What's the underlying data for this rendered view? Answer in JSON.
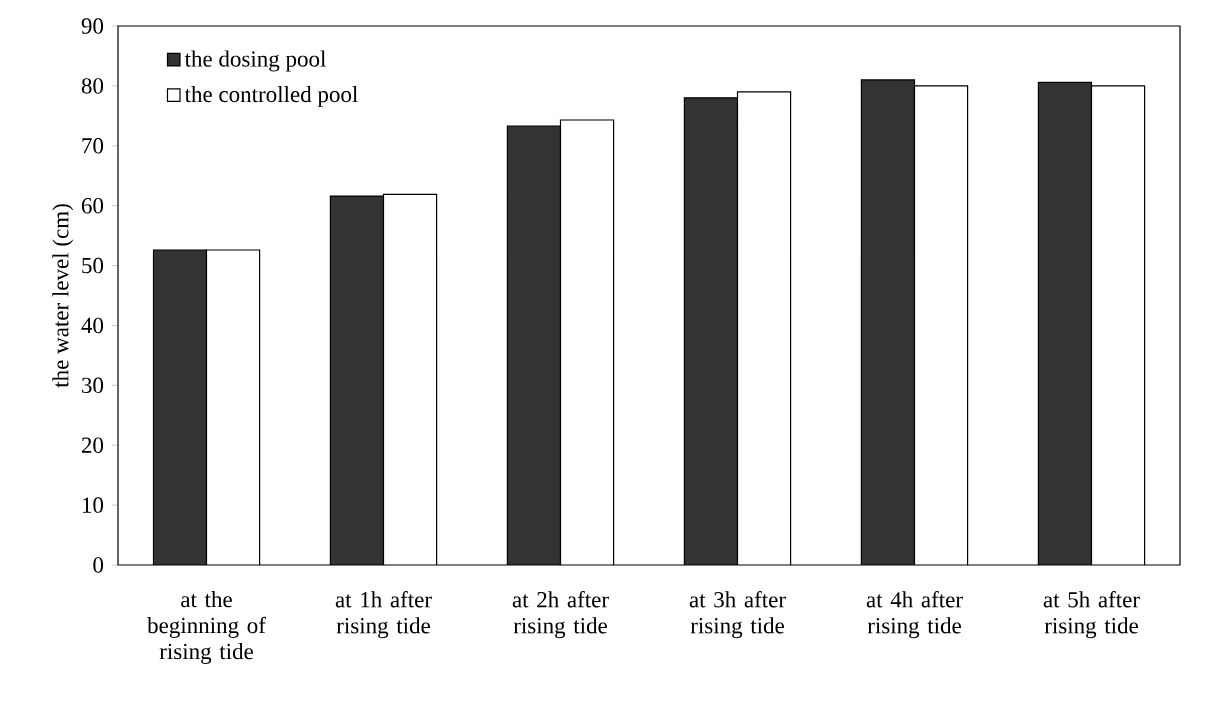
{
  "chart_data": {
    "type": "bar",
    "ylabel": "the water level (cm)",
    "categories": [
      "at the beginning of rising tide",
      "at 1h after rising tide",
      "at 2h after rising tide",
      "at 3h after rising tide",
      "at 4h after rising tide",
      "at 5h after rising tide"
    ],
    "series": [
      {
        "name": "the dosing pool",
        "color": "#333333",
        "values": [
          52.6,
          61.6,
          73.3,
          78.0,
          81.0,
          80.6
        ]
      },
      {
        "name": "the controlled pool",
        "color": "#ffffff",
        "values": [
          52.6,
          61.9,
          74.3,
          79.0,
          80.0,
          80.0
        ]
      }
    ],
    "ylim": [
      0,
      90
    ],
    "yticks": [
      0,
      10,
      20,
      30,
      40,
      50,
      60,
      70,
      80,
      90
    ],
    "legend": "top left",
    "grid": false
  }
}
